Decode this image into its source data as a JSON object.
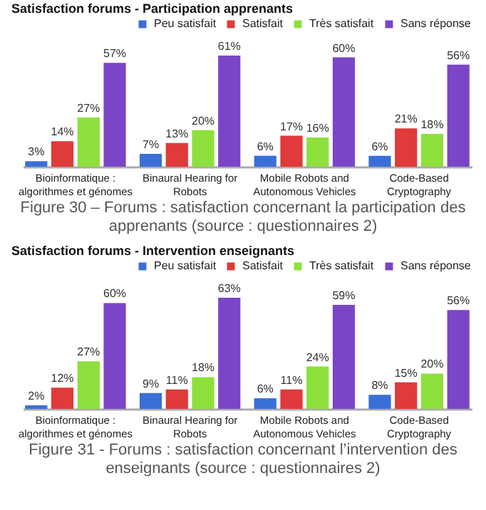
{
  "chart_data": [
    {
      "type": "bar",
      "title": "Satisfaction forums - Participation apprenants",
      "categories": [
        "Bioinformatique : algorithmes et génomes",
        "Binaural Hearing for Robots",
        "Mobile Robots and Autonomous Vehicles",
        "Code-Based Cryptography"
      ],
      "series": [
        {
          "name": "Peu satisfait",
          "color": "#3a6fd8",
          "values": [
            3,
            7,
            6,
            6
          ],
          "value_labels": [
            "3%",
            "7%",
            "6%",
            "6%"
          ]
        },
        {
          "name": "Satisfait",
          "color": "#e03a3a",
          "values": [
            14,
            13,
            17,
            21
          ],
          "value_labels": [
            "14%",
            "13%",
            "17%",
            "21%"
          ]
        },
        {
          "name": "Très satisfait",
          "color": "#8ee03c",
          "values": [
            27,
            20,
            16,
            18
          ],
          "value_labels": [
            "27%",
            "20%",
            "16%",
            "18%"
          ]
        },
        {
          "name": "Sans réponse",
          "color": "#7b45c8",
          "values": [
            57,
            61,
            60,
            56
          ],
          "value_labels": [
            "57%",
            "61%",
            "60%",
            "56%"
          ]
        }
      ],
      "legend": "top right",
      "tick_labels": "x",
      "annotations": [
        "Figure 30 – Forums : satisfaction concernant la participation des apprenants (source : questionnaires 2)"
      ]
    },
    {
      "type": "bar",
      "title": "Satisfaction forums - Intervention enseignants",
      "categories": [
        "Bioinformatique : algorithmes et génomes",
        "Binaural Hearing for Robots",
        "Mobile Robots and Autonomous Vehicles",
        "Code-Based Cryptography"
      ],
      "series": [
        {
          "name": "Peu satisfait",
          "color": "#3a6fd8",
          "values": [
            2,
            9,
            6,
            8
          ],
          "value_labels": [
            "2%",
            "9%",
            "6%",
            "8%"
          ]
        },
        {
          "name": "Satisfait",
          "color": "#e03a3a",
          "values": [
            12,
            11,
            11,
            15
          ],
          "value_labels": [
            "12%",
            "11%",
            "11%",
            "15%"
          ]
        },
        {
          "name": "Très satisfait",
          "color": "#8ee03c",
          "values": [
            27,
            18,
            24,
            20
          ],
          "value_labels": [
            "27%",
            "18%",
            "24%",
            "20%"
          ]
        },
        {
          "name": "Sans réponse",
          "color": "#7b45c8",
          "values": [
            60,
            63,
            59,
            56
          ],
          "value_labels": [
            "60%",
            "63%",
            "59%",
            "56%"
          ]
        }
      ],
      "legend": "top right",
      "tick_labels": "x",
      "annotations": [
        "Figure 31 - Forums : satisfaction concernant l’intervention des enseignants (source : questionnaires 2)"
      ]
    }
  ]
}
